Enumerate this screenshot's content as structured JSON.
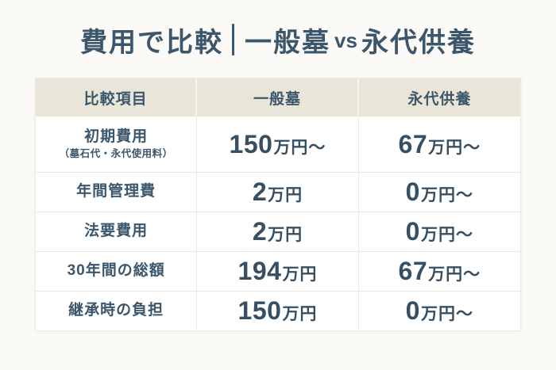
{
  "page": {
    "background": "#fbfaf6",
    "text_color": "#3c566b",
    "header_bg": "#e9e6d9",
    "table_bg": "#ffffff"
  },
  "title": {
    "left": "費用で比較",
    "divider": "｜",
    "grave": "一般墓",
    "vs": "vs",
    "eitai": "永代供養"
  },
  "table": {
    "headers": [
      "比較項目",
      "一般墓",
      "永代供養"
    ],
    "rows": [
      {
        "label": "初期費用",
        "sublabel": "（墓石代・永代使用料）",
        "ippanbo": {
          "num": "150",
          "unit": "万円〜"
        },
        "eitai": {
          "num": "67",
          "unit": "万円〜"
        }
      },
      {
        "label": "年間管理費",
        "ippanbo": {
          "num": "2",
          "unit": "万円"
        },
        "eitai": {
          "num": "0",
          "unit": "万円〜"
        }
      },
      {
        "label": "法要費用",
        "ippanbo": {
          "num": "2",
          "unit": "万円"
        },
        "eitai": {
          "num": "0",
          "unit": "万円〜"
        }
      },
      {
        "label": "30年間の総額",
        "ippanbo": {
          "num": "194",
          "unit": "万円"
        },
        "eitai": {
          "num": "67",
          "unit": "万円〜"
        }
      },
      {
        "label": "継承時の負担",
        "ippanbo": {
          "num": "150",
          "unit": "万円"
        },
        "eitai": {
          "num": "0",
          "unit": "万円〜"
        }
      }
    ]
  },
  "chart_data": {
    "type": "table",
    "title": "費用で比較｜一般墓 vs 永代供養",
    "columns": [
      "比較項目",
      "一般墓",
      "永代供養"
    ],
    "rows": [
      [
        "初期費用（墓石代・永代使用料）",
        "150万円〜",
        "67万円〜"
      ],
      [
        "年間管理費",
        "2万円",
        "0万円〜"
      ],
      [
        "法要費用",
        "2万円",
        "0万円〜"
      ],
      [
        "30年間の総額",
        "194万円",
        "67万円〜"
      ],
      [
        "継承時の負担",
        "150万円",
        "0万円〜"
      ]
    ]
  }
}
